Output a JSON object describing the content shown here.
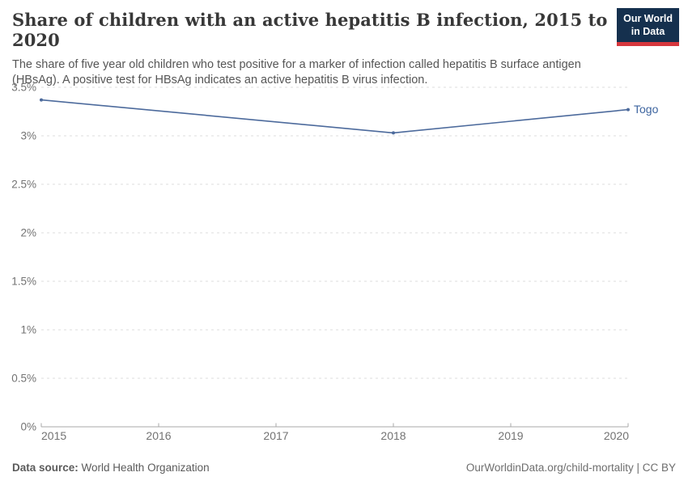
{
  "header": {
    "title": "Share of children with an active hepatitis B infection, 2015 to 2020",
    "subtitle": "The share of five year old children who test positive for a marker of infection called hepatitis B surface antigen (HBsAg). A positive test for HBsAg indicates an active hepatitis B virus infection.",
    "logo": {
      "line1": "Our World",
      "line2": "in Data",
      "bg_color": "#15304e",
      "accent_color": "#d6363c"
    }
  },
  "chart_data": {
    "type": "line",
    "title": "Share of children with an active hepatitis B infection, 2015 to 2020",
    "series": [
      {
        "name": "Togo",
        "color": "#4c6a9c",
        "label_color": "#3d649f",
        "points": [
          {
            "x": 2015,
            "y": 3.37
          },
          {
            "x": 2018,
            "y": 3.03
          },
          {
            "x": 2020,
            "y": 3.27
          }
        ]
      }
    ],
    "x_ticks": [
      2015,
      2016,
      2017,
      2018,
      2019,
      2020
    ],
    "y_ticks": [
      0,
      0.5,
      1,
      1.5,
      2,
      2.5,
      3,
      3.5
    ],
    "y_tick_suffix": "%",
    "xlim": [
      2015,
      2020
    ],
    "ylim": [
      0,
      3.5
    ],
    "grid": "horizontal-dashed",
    "legend_position": "end-of-line",
    "end_label": "Togo",
    "colors": {
      "grid": "#dcdcdc",
      "axis": "#a8a8a8",
      "tick_text": "#737373"
    }
  },
  "footer": {
    "source_label": "Data source:",
    "source_value": " World Health Organization",
    "right_text": "OurWorldinData.org/child-mortality | CC BY"
  }
}
